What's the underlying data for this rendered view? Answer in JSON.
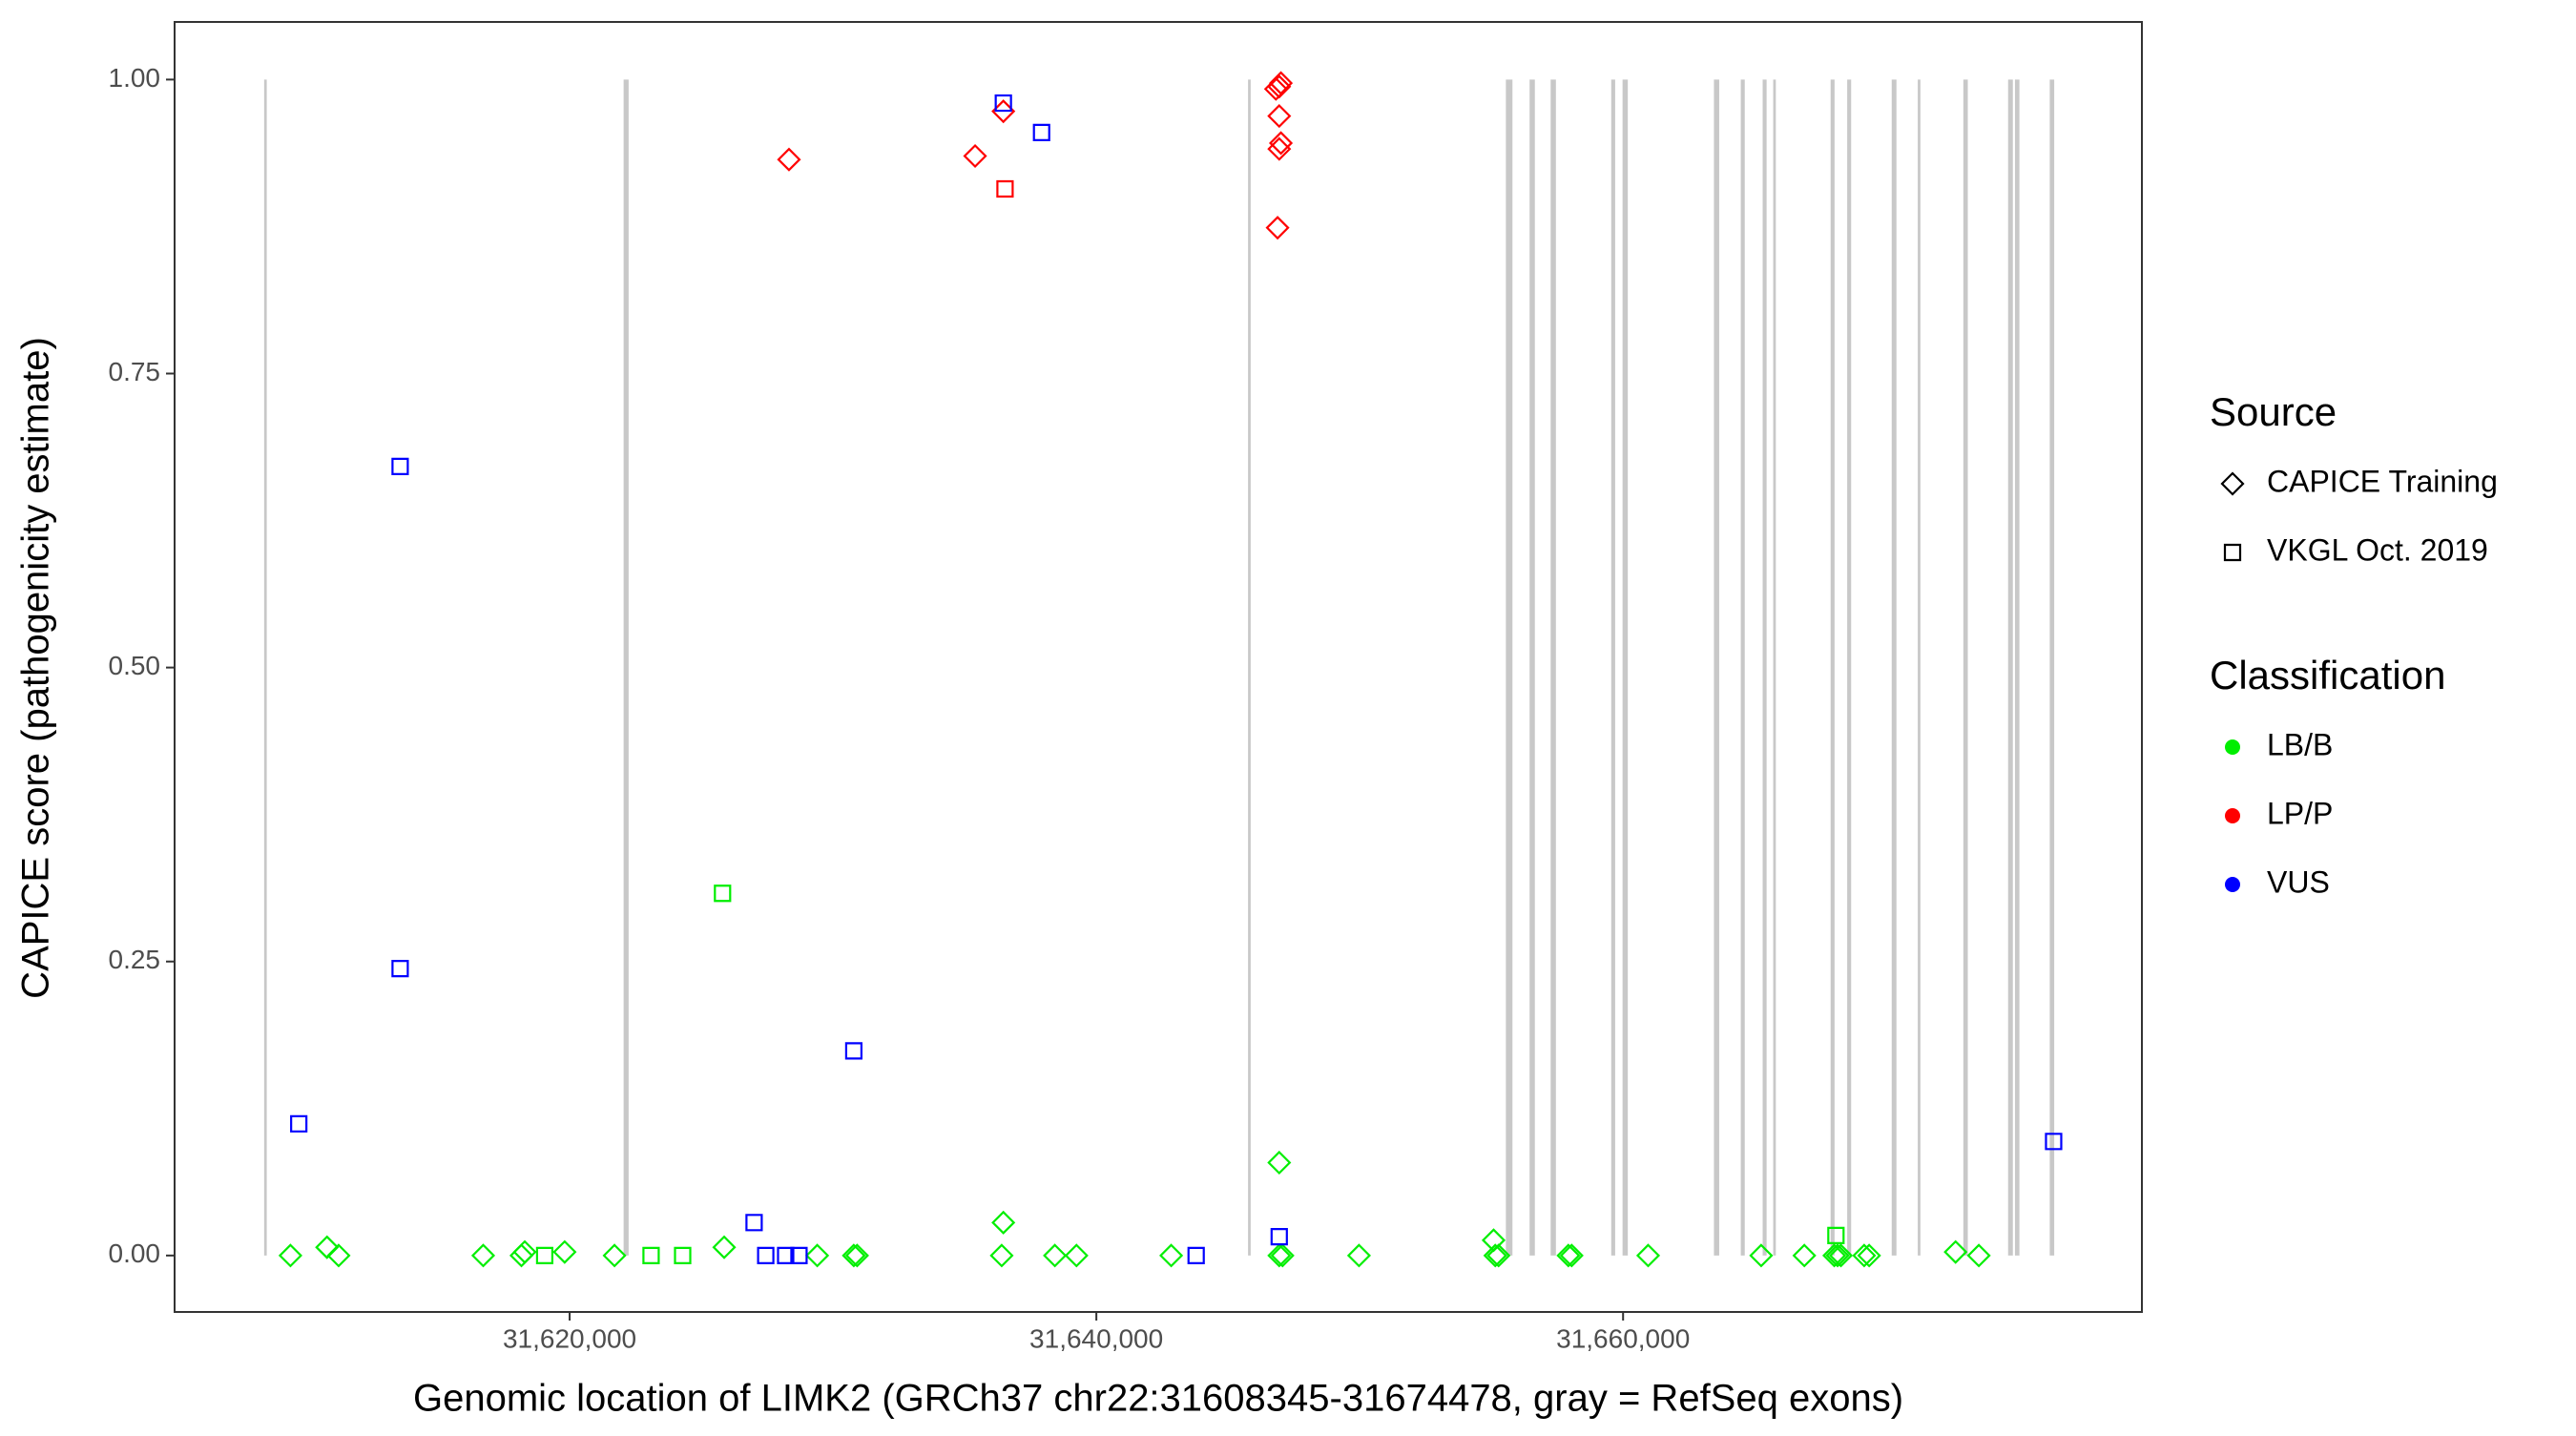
{
  "chart_data": {
    "type": "scatter",
    "x_label": "Genomic location of LIMK2 (GRCh37 chr22:31608345-31674478, gray = RefSeq exons)",
    "y_label": "CAPICE score (pathogenicity estimate)",
    "xlim": [
      31605000,
      31679700
    ],
    "ylim": [
      -0.048,
      1.049
    ],
    "xticks": [
      {
        "value": 31620000,
        "label": "31,620,000"
      },
      {
        "value": 31640000,
        "label": "31,640,000"
      },
      {
        "value": 31660000,
        "label": "31,660,000"
      }
    ],
    "yticks": [
      {
        "value": 0,
        "label": "0.00"
      },
      {
        "value": 0.25,
        "label": "0.25"
      },
      {
        "value": 0.5,
        "label": "0.50"
      },
      {
        "value": 0.75,
        "label": "0.75"
      },
      {
        "value": 1,
        "label": "1.00"
      }
    ],
    "grid": false,
    "exon_color": "#c8c8c8",
    "exons": {
      "start": [
        31608400,
        31622050,
        31645760,
        31655550,
        31656450,
        31657250,
        31659550,
        31659980,
        31663450,
        31664470,
        31665300,
        31665700,
        31667880,
        31668510,
        31670200,
        31671190,
        31672920,
        31674620,
        31674880,
        31676200
      ],
      "end": [
        31608500,
        31622240,
        31645860,
        31655800,
        31656650,
        31657450,
        31659700,
        31660180,
        31663650,
        31664620,
        31665450,
        31665800,
        31668030,
        31668660,
        31670380,
        31671290,
        31673090,
        31674800,
        31675050,
        31676370
      ],
      "ymin": 0,
      "ymax": 1
    },
    "legends": [
      {
        "title": "Source",
        "items": [
          {
            "name": "CAPICE Training",
            "shape": "diamond"
          },
          {
            "name": "VKGL Oct. 2019",
            "shape": "square"
          }
        ]
      },
      {
        "title": "Classification",
        "items": [
          {
            "name": "LB/B",
            "color": "#00ee00"
          },
          {
            "name": "LP/P",
            "color": "#ff0000"
          },
          {
            "name": "VUS",
            "color": "#0000ff"
          }
        ]
      }
    ],
    "series": [
      {
        "shape": "diamond",
        "color": "#00ee00",
        "x": [
          31609399,
          31610787,
          31611229,
          31616719,
          31618170,
          31618296,
          31619811,
          31621704,
          31625868,
          31629402,
          31630790,
          31630916,
          31636406,
          31636469,
          31638425,
          31639246,
          31642842,
          31646944,
          31646944,
          31647070,
          31649973,
          31655084,
          31655147,
          31655273,
          31657923,
          31658049,
          31660952,
          31665243,
          31666883,
          31668019,
          31668145,
          31668272,
          31669155,
          31669344,
          31672625,
          31673509
        ],
        "y": [
          0,
          0.007,
          0,
          0,
          0,
          0.003,
          0.003,
          0,
          0.007,
          0,
          0,
          0,
          0,
          0.028,
          0,
          0,
          0,
          0.079,
          0,
          0,
          0,
          0.013,
          0,
          0,
          0,
          0,
          0,
          0,
          0,
          0,
          0,
          0,
          0,
          0,
          0.003,
          0
        ]
      },
      {
        "shape": "square",
        "color": "#00ee00",
        "x": [
          31619053,
          31623092,
          31624291,
          31625805,
          31668082
        ],
        "y": [
          0,
          0,
          0,
          0.308,
          0.017
        ]
      },
      {
        "shape": "diamond",
        "color": "#ff0000",
        "x": [
          31628329,
          31635396,
          31636469,
          31646944,
          31647007,
          31646818,
          31646944,
          31647007,
          31646944,
          31646881
        ],
        "y": [
          0.932,
          0.935,
          0.973,
          0.994,
          0.997,
          0.992,
          0.969,
          0.946,
          0.941,
          0.874
        ]
      },
      {
        "shape": "square",
        "color": "#ff0000",
        "x": [
          31636532
        ],
        "y": [
          0.907
        ]
      },
      {
        "shape": "square",
        "color": "#0000ff",
        "x": [
          31609715,
          31613564,
          31613564,
          31636469,
          31637920,
          31630790,
          31627004,
          31627446,
          31628203,
          31628708,
          31643789,
          31646944,
          31676348
        ],
        "y": [
          0.112,
          0.244,
          0.671,
          0.98,
          0.955,
          0.174,
          0.028,
          0,
          0,
          0,
          0,
          0.016,
          0.097
        ]
      }
    ]
  }
}
